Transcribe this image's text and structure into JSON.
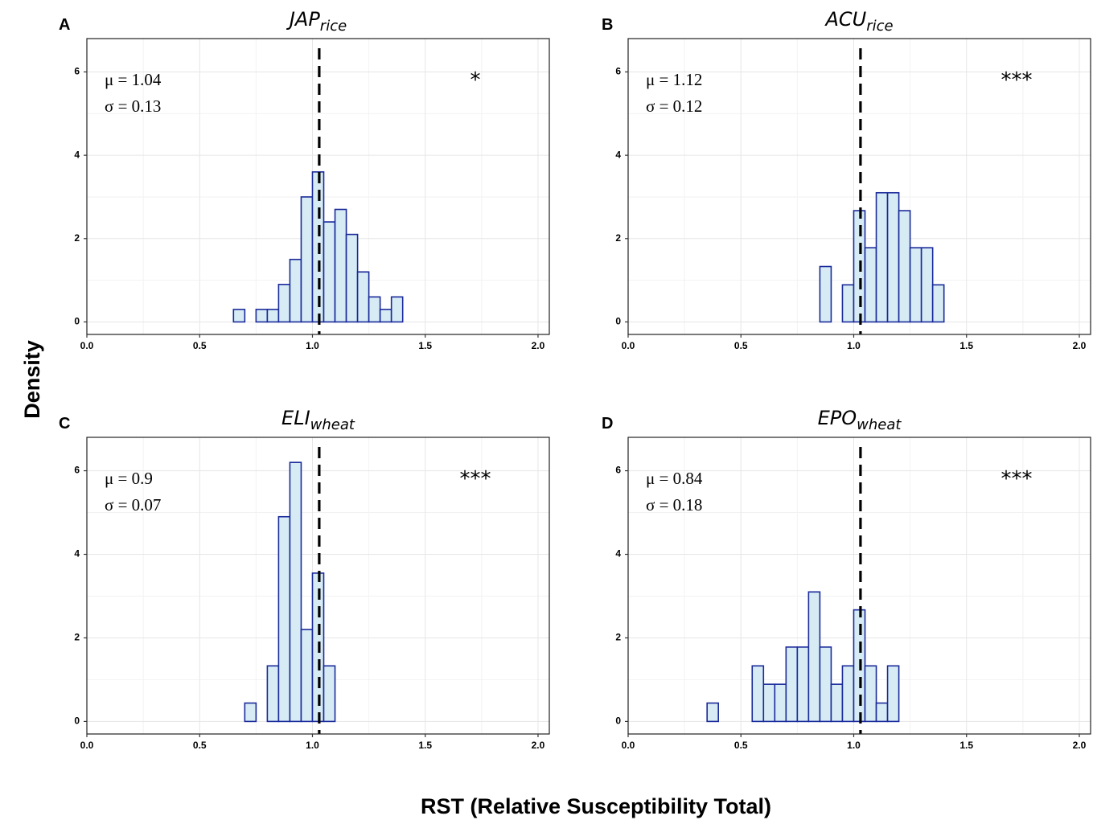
{
  "figure": {
    "xlabel": "RST (Relative Susceptibility Total)",
    "ylabel": "Density"
  },
  "chart_data": [
    {
      "type": "bar",
      "letter": "A",
      "title_main": "JAP",
      "title_sub": "rice",
      "mu_text": "μ = 1.04",
      "sigma_text": "σ = 0.13",
      "significance": "*",
      "xlim": [
        0,
        2.05
      ],
      "ylim": [
        -0.3,
        6.8
      ],
      "x_ticks": [
        "0.0",
        "0.5",
        "1.0",
        "1.5",
        "2.0"
      ],
      "y_ticks": [
        "0",
        "2",
        "4",
        "6"
      ],
      "reference_line_x": 1.03,
      "bin_width": 0.05,
      "bins": [
        {
          "x0": 0.65,
          "density": 0.3
        },
        {
          "x0": 0.75,
          "density": 0.3
        },
        {
          "x0": 0.8,
          "density": 0.3
        },
        {
          "x0": 0.85,
          "density": 0.9
        },
        {
          "x0": 0.9,
          "density": 1.5
        },
        {
          "x0": 0.95,
          "density": 3.0
        },
        {
          "x0": 1.0,
          "density": 3.6
        },
        {
          "x0": 1.05,
          "density": 2.4
        },
        {
          "x0": 1.1,
          "density": 2.7
        },
        {
          "x0": 1.15,
          "density": 2.1
        },
        {
          "x0": 1.2,
          "density": 1.2
        },
        {
          "x0": 1.25,
          "density": 0.6
        },
        {
          "x0": 1.3,
          "density": 0.3
        },
        {
          "x0": 1.35,
          "density": 0.6
        }
      ]
    },
    {
      "type": "bar",
      "letter": "B",
      "title_main": "ACU",
      "title_sub": "rice",
      "mu_text": "μ = 1.12",
      "sigma_text": "σ = 0.12",
      "significance": "***",
      "xlim": [
        0,
        2.05
      ],
      "ylim": [
        -0.3,
        6.8
      ],
      "x_ticks": [
        "0.0",
        "0.5",
        "1.0",
        "1.5",
        "2.0"
      ],
      "y_ticks": [
        "0",
        "2",
        "4",
        "6"
      ],
      "reference_line_x": 1.03,
      "bin_width": 0.05,
      "bins": [
        {
          "x0": 0.85,
          "density": 1.33
        },
        {
          "x0": 0.95,
          "density": 0.89
        },
        {
          "x0": 1.0,
          "density": 2.67
        },
        {
          "x0": 1.05,
          "density": 1.78
        },
        {
          "x0": 1.1,
          "density": 3.1
        },
        {
          "x0": 1.15,
          "density": 3.1
        },
        {
          "x0": 1.2,
          "density": 2.67
        },
        {
          "x0": 1.25,
          "density": 1.78
        },
        {
          "x0": 1.3,
          "density": 1.78
        },
        {
          "x0": 1.35,
          "density": 0.89
        }
      ]
    },
    {
      "type": "bar",
      "letter": "C",
      "title_main": "ELI",
      "title_sub": "wheat",
      "mu_text": "μ = 0.9",
      "sigma_text": "σ = 0.07",
      "significance": "***",
      "xlim": [
        0,
        2.05
      ],
      "ylim": [
        -0.3,
        6.8
      ],
      "x_ticks": [
        "0.0",
        "0.5",
        "1.0",
        "1.5",
        "2.0"
      ],
      "y_ticks": [
        "0",
        "2",
        "4",
        "6"
      ],
      "reference_line_x": 1.03,
      "bin_width": 0.05,
      "bins": [
        {
          "x0": 0.7,
          "density": 0.44
        },
        {
          "x0": 0.8,
          "density": 1.33
        },
        {
          "x0": 0.85,
          "density": 4.9
        },
        {
          "x0": 0.9,
          "density": 6.2
        },
        {
          "x0": 0.95,
          "density": 2.2
        },
        {
          "x0": 1.0,
          "density": 3.55
        },
        {
          "x0": 1.05,
          "density": 1.33
        }
      ]
    },
    {
      "type": "bar",
      "letter": "D",
      "title_main": "EPO",
      "title_sub": "wheat",
      "mu_text": "μ = 0.84",
      "sigma_text": "σ = 0.18",
      "significance": "***",
      "xlim": [
        0,
        2.05
      ],
      "ylim": [
        -0.3,
        6.8
      ],
      "x_ticks": [
        "0.0",
        "0.5",
        "1.0",
        "1.5",
        "2.0"
      ],
      "y_ticks": [
        "0",
        "2",
        "4",
        "6"
      ],
      "reference_line_x": 1.03,
      "bin_width": 0.05,
      "bins": [
        {
          "x0": 0.35,
          "density": 0.44
        },
        {
          "x0": 0.55,
          "density": 1.33
        },
        {
          "x0": 0.6,
          "density": 0.89
        },
        {
          "x0": 0.65,
          "density": 0.89
        },
        {
          "x0": 0.7,
          "density": 1.78
        },
        {
          "x0": 0.75,
          "density": 1.78
        },
        {
          "x0": 0.8,
          "density": 3.1
        },
        {
          "x0": 0.85,
          "density": 1.78
        },
        {
          "x0": 0.9,
          "density": 0.89
        },
        {
          "x0": 0.95,
          "density": 1.33
        },
        {
          "x0": 1.0,
          "density": 2.67
        },
        {
          "x0": 1.05,
          "density": 1.33
        },
        {
          "x0": 1.1,
          "density": 0.44
        },
        {
          "x0": 1.15,
          "density": 1.33
        }
      ]
    }
  ]
}
